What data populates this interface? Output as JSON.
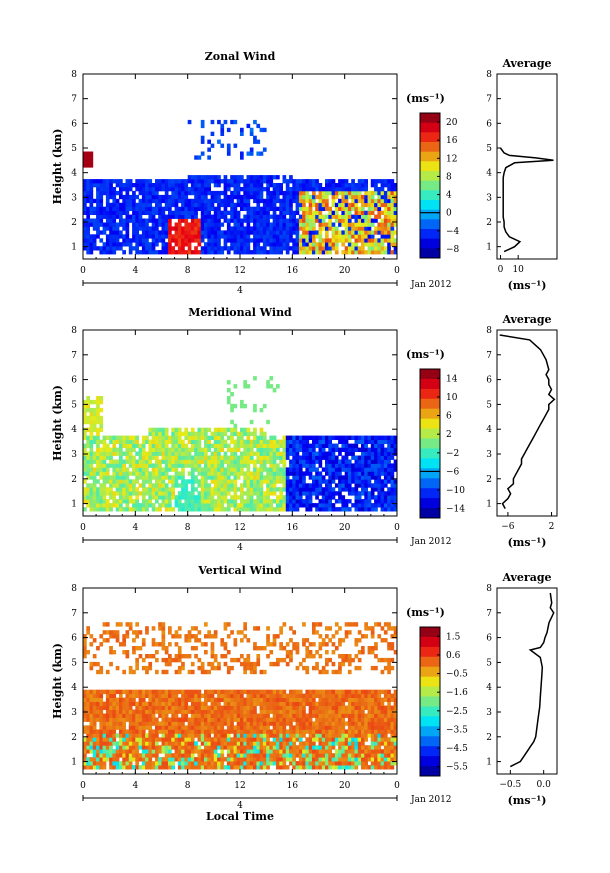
{
  "chart_data": [
    {
      "type": "heatmap",
      "title": "Zonal Wind",
      "ylabel": "Height (km)",
      "ylim": [
        0.5,
        8
      ],
      "y_ticks": [
        "1",
        "2",
        "3",
        "4",
        "5",
        "6",
        "7",
        "8"
      ],
      "xlim": [
        0,
        24
      ],
      "x_ticks": [
        "0",
        "4",
        "8",
        "12",
        "16",
        "20",
        "0"
      ],
      "date_marker": "4",
      "date_label": "Jan 2012",
      "colorbar": {
        "unit": "(ms⁻¹)",
        "range": [
          -8,
          22
        ],
        "tick_labels": [
          "20",
          "16",
          "12",
          "8",
          "4",
          "0",
          "−4",
          "−8"
        ],
        "contour_at": "0"
      },
      "profile": {
        "title": "Average",
        "xlabel": "(ms⁻¹)",
        "x_ticks": [
          "0",
          "10"
        ],
        "xlim": [
          -2,
          32
        ],
        "y_ticks": [
          "1",
          "2",
          "3",
          "4",
          "5",
          "6",
          "7",
          "8"
        ],
        "height": [
          0.8,
          1.0,
          1.2,
          1.4,
          1.6,
          1.8,
          2.0,
          2.2,
          2.4,
          2.6,
          2.8,
          3.0,
          3.2,
          3.4,
          3.6,
          3.8,
          4.0,
          4.2,
          4.4,
          4.5,
          4.6,
          4.7,
          4.8,
          4.9,
          5.0
        ],
        "value": [
          2,
          8,
          11,
          5,
          3,
          2,
          2,
          1.5,
          1.5,
          1.5,
          1.5,
          1.5,
          1.5,
          1.5,
          1.5,
          1.5,
          2,
          3,
          8,
          30,
          20,
          5,
          2,
          1,
          0
        ]
      }
    },
    {
      "type": "heatmap",
      "title": "Meridional Wind",
      "ylabel": "Height (km)",
      "ylim": [
        0.5,
        8
      ],
      "y_ticks": [
        "1",
        "2",
        "3",
        "4",
        "5",
        "6",
        "7",
        "8"
      ],
      "xlim": [
        0,
        24
      ],
      "x_ticks": [
        "0",
        "4",
        "8",
        "12",
        "16",
        "20",
        "0"
      ],
      "date_marker": "4",
      "date_label": "Jan 2012",
      "colorbar": {
        "unit": "(ms⁻¹)",
        "range": [
          -14,
          16
        ],
        "tick_labels": [
          "14",
          "10",
          "6",
          "2",
          "−2",
          "−6",
          "−10",
          "−14"
        ],
        "contour_at": "0"
      },
      "profile": {
        "title": "Average",
        "xlabel": "(ms⁻¹)",
        "x_ticks": [
          "−6",
          "2"
        ],
        "xlim": [
          -8,
          3
        ],
        "y_ticks": [
          "1",
          "2",
          "3",
          "4",
          "5",
          "6",
          "7",
          "8"
        ],
        "height": [
          0.8,
          1.0,
          1.2,
          1.4,
          1.6,
          1.8,
          2.0,
          2.2,
          2.4,
          2.6,
          2.8,
          3.0,
          3.2,
          3.4,
          3.6,
          3.8,
          4.0,
          4.2,
          4.4,
          4.6,
          4.8,
          5.0,
          5.2,
          5.4,
          5.6,
          5.8,
          6.0,
          6.2,
          6.4,
          6.8,
          7.0,
          7.2,
          7.4,
          7.6,
          7.8
        ],
        "value": [
          -6.5,
          -7,
          -6,
          -5.5,
          -6,
          -5,
          -5,
          -4.5,
          -4,
          -3.5,
          -3.5,
          -3,
          -2.5,
          -2,
          -1.5,
          -1,
          -0.5,
          0,
          0.5,
          1,
          1.5,
          1.5,
          2.5,
          1.5,
          2,
          1.5,
          1.5,
          1,
          1.5,
          1,
          0.5,
          0,
          -1,
          -2,
          -7.5
        ]
      }
    },
    {
      "type": "heatmap",
      "title": "Vertical Wind",
      "ylabel": "Height (km)",
      "xlabel": "Local Time",
      "ylim": [
        0.5,
        8
      ],
      "y_ticks": [
        "1",
        "2",
        "3",
        "4",
        "5",
        "6",
        "7",
        "8"
      ],
      "xlim": [
        0,
        24
      ],
      "x_ticks": [
        "0",
        "4",
        "8",
        "12",
        "16",
        "20",
        "0"
      ],
      "date_marker": "4",
      "date_label": "Jan 2012",
      "colorbar": {
        "unit": "(ms⁻¹)",
        "range": [
          -6.0,
          2.0
        ],
        "tick_labels": [
          "1.5",
          "0.6",
          "−0.5",
          "−1.6",
          "−2.5",
          "−3.5",
          "−4.5",
          "−5.5"
        ]
      },
      "profile": {
        "title": "Average",
        "xlabel": "(ms⁻¹)",
        "x_ticks": [
          "−0.5",
          "0.0"
        ],
        "xlim": [
          -0.7,
          0.2
        ],
        "y_ticks": [
          "1",
          "2",
          "3",
          "4",
          "5",
          "6",
          "7",
          "8"
        ],
        "height": [
          0.8,
          1.0,
          1.2,
          1.4,
          1.6,
          1.8,
          2.0,
          2.4,
          2.8,
          3.2,
          3.6,
          4.0,
          4.4,
          4.8,
          5.2,
          5.4,
          5.5,
          5.6,
          5.8,
          6.0,
          6.2,
          6.6,
          7.0,
          7.2,
          7.4,
          7.8
        ],
        "value": [
          -0.5,
          -0.35,
          -0.3,
          -0.25,
          -0.2,
          -0.15,
          -0.12,
          -0.1,
          -0.08,
          -0.06,
          -0.05,
          -0.04,
          -0.03,
          -0.02,
          -0.05,
          -0.15,
          -0.2,
          -0.05,
          0.0,
          0.02,
          0.05,
          0.08,
          0.15,
          0.1,
          0.12,
          0.1
        ]
      }
    }
  ]
}
